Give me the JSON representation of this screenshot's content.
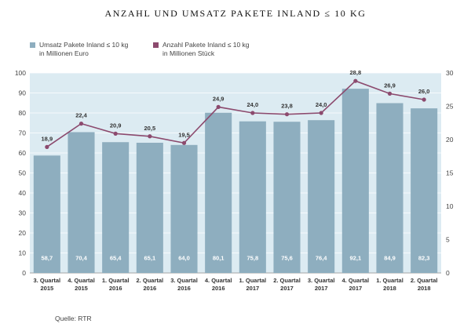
{
  "chart_data": {
    "type": "bar",
    "title": "ANZAHL UND UMSATZ PAKETE INLAND ≤ 10 KG",
    "categories": [
      [
        "3. Quartal",
        "2015"
      ],
      [
        "4. Quartal",
        "2015"
      ],
      [
        "1. Quartal",
        "2016"
      ],
      [
        "2. Quartal",
        "2016"
      ],
      [
        "3. Quartal",
        "2016"
      ],
      [
        "4. Quartal",
        "2016"
      ],
      [
        "1. Quartal",
        "2017"
      ],
      [
        "2. Quartal",
        "2017"
      ],
      [
        "3. Quartal",
        "2017"
      ],
      [
        "4. Quartal",
        "2017"
      ],
      [
        "1. Quartal",
        "2018"
      ],
      [
        "2. Quartal",
        "2018"
      ]
    ],
    "series": [
      {
        "name": "Umsatz Pakete Inland ≤ 10 kg in Millionen Euro",
        "legend_lines": [
          "Umsatz Pakete Inland ≤ 10 kg",
          "in Millionen Euro"
        ],
        "type": "bar",
        "axis": "left",
        "color": "#8eaebf",
        "values": [
          58.7,
          70.4,
          65.4,
          65.1,
          64.0,
          80.1,
          75.8,
          75.6,
          76.4,
          92.1,
          84.9,
          82.3
        ],
        "labels": [
          "58,7",
          "70,4",
          "65,4",
          "65,1",
          "64,0",
          "80,1",
          "75,8",
          "75,6",
          "76,4",
          "92,1",
          "84,9",
          "82,3"
        ]
      },
      {
        "name": "Anzahl Pakete Inland ≤ 10 kg in Millionen Stück",
        "legend_lines": [
          "Anzahl Pakete Inland ≤ 10 kg",
          "in Millionen Stück"
        ],
        "type": "line",
        "axis": "right",
        "color": "#8c4a6e",
        "values": [
          18.9,
          22.4,
          20.9,
          20.5,
          19.5,
          24.9,
          24.0,
          23.8,
          24.0,
          28.8,
          26.9,
          26.0
        ],
        "labels": [
          "18,9",
          "22,4",
          "20,9",
          "20,5",
          "19,5",
          "24,9",
          "24,0",
          "23,8",
          "24,0",
          "28,8",
          "26,9",
          "26,0"
        ]
      }
    ],
    "y_left": {
      "min": 0,
      "max": 100,
      "ticks": [
        0,
        10,
        20,
        30,
        40,
        50,
        60,
        70,
        80,
        90,
        100
      ]
    },
    "y_right": {
      "min": 0,
      "max": 30,
      "ticks": [
        0,
        5,
        10,
        15,
        20,
        25,
        30
      ]
    },
    "grid": true,
    "background_color": "#dcebf2",
    "source": "Quelle: RTR"
  }
}
